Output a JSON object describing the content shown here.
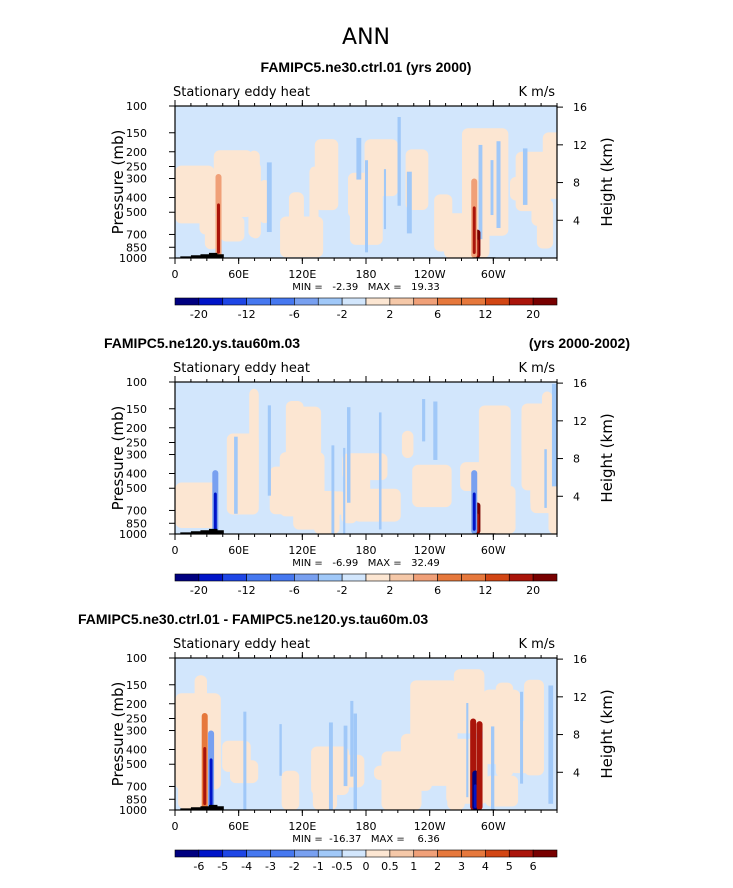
{
  "page_title": "ANN",
  "colors": {
    "land": "#000000",
    "frame": "#000000",
    "palette_12": [
      "#000080",
      "#0014c8",
      "#1e46e6",
      "#4678f0",
      "#78a0f0",
      "#a0c8f8",
      "#d2e6fc",
      "#fce6d2",
      "#f5c8a8",
      "#f0a078",
      "#e6783c",
      "#d24614",
      "#aa140a",
      "#780000"
    ]
  },
  "chart_data": [
    {
      "type": "heatmap",
      "title": "FAMIPC5.ne30.ctrl.01 (yrs 2000)",
      "title_right": "",
      "left_string": "Stationary eddy heat",
      "right_string": "K m/s",
      "ylabel": "Pressure (mb)",
      "ylabel_right": "Height (km)",
      "y_ticks": [
        "100",
        "150",
        "200",
        "250",
        "300",
        "400",
        "500",
        "700",
        "850",
        "1000"
      ],
      "y_tick_values": [
        100,
        150,
        200,
        250,
        300,
        400,
        500,
        700,
        850,
        1000
      ],
      "y_right_ticks": [
        "16",
        "12",
        "8",
        "4"
      ],
      "y_right_values": [
        16,
        12,
        8,
        4
      ],
      "x_ticks": [
        "0",
        "60E",
        "120E",
        "180",
        "120W",
        "60W"
      ],
      "x_tick_values": [
        0,
        60,
        120,
        180,
        240,
        300
      ],
      "xlim": [
        0,
        360
      ],
      "ylim": [
        1000,
        100
      ],
      "min_max_text": "MIN =   -2.39   MAX =   19.33",
      "min": -2.39,
      "max": 19.33,
      "colorbar_labels": [
        "-20",
        "-12",
        "-6",
        "-2",
        "2",
        "6",
        "12",
        "20"
      ],
      "colorbar_levels": [
        -20,
        -16,
        -12,
        -8,
        -6,
        -4,
        -2,
        0,
        2,
        4,
        6,
        8,
        12,
        16,
        20
      ],
      "features": [
        {
          "lon": 41,
          "p_top": 280,
          "sign": "pos",
          "strength": 0.35
        },
        {
          "lon": 285,
          "p_top": 650,
          "sign": "pos",
          "strength": 0.95
        },
        {
          "lon": 282,
          "p_top": 300,
          "sign": "pos",
          "strength": 0.25
        }
      ]
    },
    {
      "type": "heatmap",
      "title": "FAMIPC5.ne120.ys.tau60m.03",
      "title_right": "(yrs 2000-2002)",
      "left_string": "Stationary eddy heat",
      "right_string": "K m/s",
      "ylabel": "Pressure (mb)",
      "ylabel_right": "Height (km)",
      "y_ticks": [
        "100",
        "150",
        "200",
        "250",
        "300",
        "400",
        "500",
        "700",
        "850",
        "1000"
      ],
      "y_tick_values": [
        100,
        150,
        200,
        250,
        300,
        400,
        500,
        700,
        850,
        1000
      ],
      "y_right_ticks": [
        "16",
        "12",
        "8",
        "4"
      ],
      "y_right_values": [
        16,
        12,
        8,
        4
      ],
      "x_ticks": [
        "0",
        "60E",
        "120E",
        "180",
        "120W",
        "60W"
      ],
      "x_tick_values": [
        0,
        60,
        120,
        180,
        240,
        300
      ],
      "xlim": [
        0,
        360
      ],
      "ylim": [
        1000,
        100
      ],
      "min_max_text": "MIN =   -6.99   MAX =   32.49",
      "min": -6.99,
      "max": 32.49,
      "colorbar_labels": [
        "-20",
        "-12",
        "-6",
        "-2",
        "2",
        "6",
        "12",
        "20"
      ],
      "colorbar_levels": [
        -20,
        -16,
        -12,
        -8,
        -6,
        -4,
        -2,
        0,
        2,
        4,
        6,
        8,
        12,
        16,
        20
      ],
      "features": [
        {
          "lon": 38,
          "p_top": 380,
          "sign": "neg",
          "strength": 0.4
        },
        {
          "lon": 285,
          "p_top": 620,
          "sign": "pos",
          "strength": 1.0
        },
        {
          "lon": 282,
          "p_top": 380,
          "sign": "neg",
          "strength": 0.35
        }
      ]
    },
    {
      "type": "heatmap",
      "title": "FAMIPC5.ne30.ctrl.01 - FAMIPC5.ne120.ys.tau60m.03",
      "title_right": "",
      "left_string": "Stationary eddy heat",
      "right_string": "K m/s",
      "ylabel": "Pressure (mb)",
      "ylabel_right": "Height (km)",
      "y_ticks": [
        "100",
        "150",
        "200",
        "250",
        "300",
        "400",
        "500",
        "700",
        "850",
        "1000"
      ],
      "y_tick_values": [
        100,
        150,
        200,
        250,
        300,
        400,
        500,
        700,
        850,
        1000
      ],
      "y_right_ticks": [
        "16",
        "12",
        "8",
        "4"
      ],
      "y_right_values": [
        16,
        12,
        8,
        4
      ],
      "x_ticks": [
        "0",
        "60E",
        "120E",
        "180",
        "120W",
        "60W"
      ],
      "x_tick_values": [
        0,
        60,
        120,
        180,
        240,
        300
      ],
      "xlim": [
        0,
        360
      ],
      "ylim": [
        1000,
        100
      ],
      "min_max_text": "MIN =  -16.37   MAX =    6.36",
      "min": -16.37,
      "max": 6.36,
      "colorbar_labels": [
        "-6",
        "-5",
        "-4",
        "-3",
        "-2",
        "-1",
        "-0.5",
        "0",
        "0.5",
        "1",
        "2",
        "3",
        "4",
        "5",
        "6"
      ],
      "colorbar_levels": [
        -6,
        -5,
        -4,
        -3,
        -2,
        -1,
        -0.5,
        0,
        0.5,
        1,
        2,
        3,
        4,
        5,
        6
      ],
      "features": [
        {
          "lon": 28,
          "p_top": 230,
          "sign": "pos",
          "strength": 0.5
        },
        {
          "lon": 34,
          "p_top": 300,
          "sign": "neg",
          "strength": 0.4
        },
        {
          "lon": 281,
          "p_top": 250,
          "sign": "pos",
          "strength": 0.9
        },
        {
          "lon": 283,
          "p_top": 550,
          "sign": "neg",
          "strength": 1.0
        },
        {
          "lon": 287,
          "p_top": 260,
          "sign": "pos",
          "strength": 0.8
        }
      ]
    }
  ]
}
